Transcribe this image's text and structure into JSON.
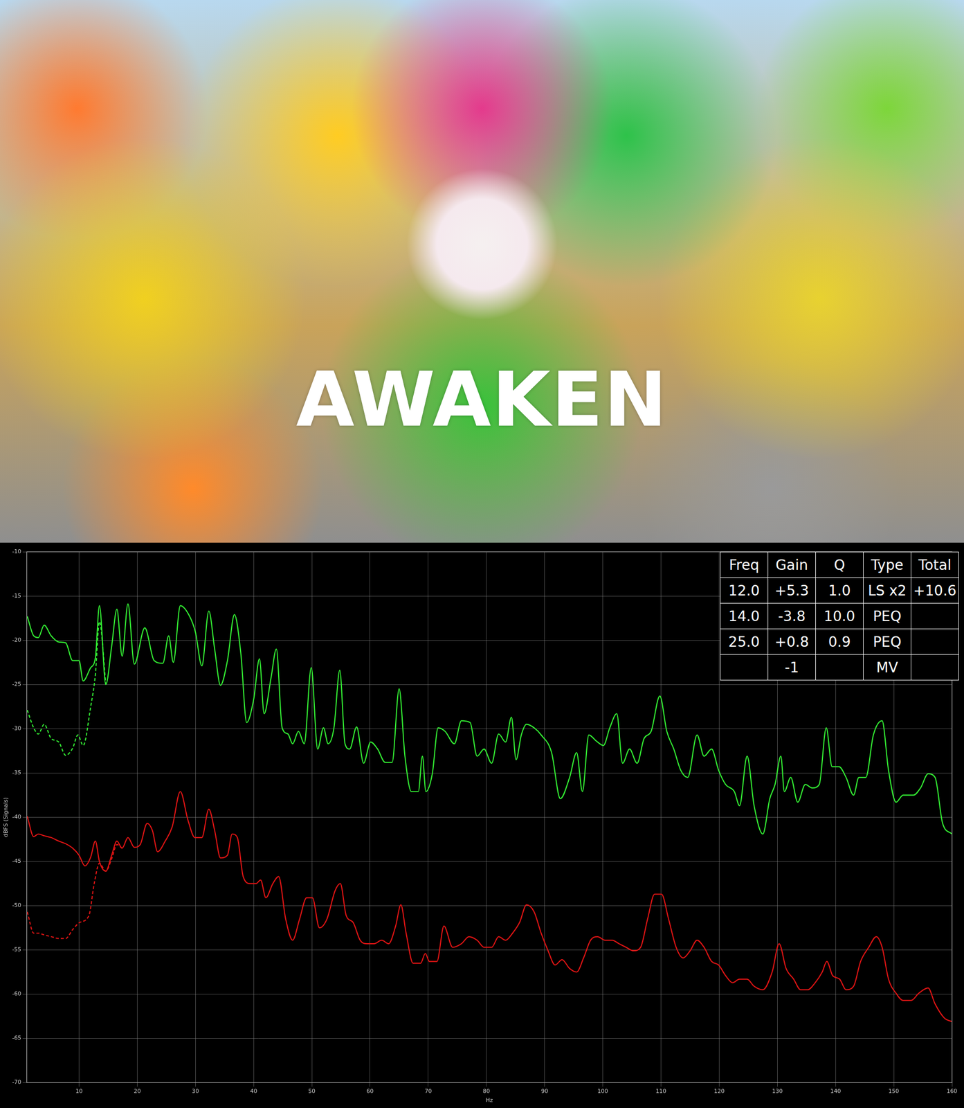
{
  "image_text": "AWAKEN",
  "chart_data": {
    "type": "line",
    "x_label": "Hz",
    "y_label": "dBFS (Signals)",
    "xlim": [
      1,
      160
    ],
    "xticks": [
      10,
      20,
      30,
      40,
      50,
      60,
      70,
      80,
      90,
      100,
      110,
      120,
      130,
      140,
      150,
      160
    ],
    "ylim": [
      -70,
      -10
    ],
    "yticks": [
      -70,
      -65,
      -60,
      -55,
      -50,
      -45,
      -40,
      -35,
      -30,
      -25,
      -20,
      -15,
      -10
    ],
    "grid": true,
    "table": {
      "header": [
        "Freq",
        "Gain",
        "Q",
        "Type",
        "Total"
      ],
      "rows": [
        [
          "12.0",
          "+5.3",
          "1.0",
          "LS x2",
          "+10.6"
        ],
        [
          "14.0",
          "-3.8",
          "10.0",
          "PEQ",
          null
        ],
        [
          "25.0",
          "+0.8",
          "0.9",
          "PEQ",
          null
        ],
        [
          null,
          "-1",
          null,
          "MV",
          null
        ]
      ]
    },
    "series": [
      {
        "color": "#33ee33",
        "line_style": "solid",
        "x": [
          1.1,
          2.2,
          3,
          4,
          5.2,
          6.5,
          7.7,
          8.9,
          10,
          10.7,
          12,
          12.8,
          13.5,
          14.6,
          15.6,
          16.5,
          17.4,
          18.4,
          19.5,
          21.3,
          22.9,
          24.4,
          25.4,
          26.2,
          27.4,
          29,
          30,
          31.1,
          32.3,
          33.3,
          34.3,
          35.5,
          36.7,
          37.8,
          38.8,
          40,
          41,
          41.8,
          43,
          43.9,
          44.9,
          45.9,
          46.7,
          47.7,
          48.7,
          49.9,
          51,
          52,
          52.8,
          53.8,
          54.8,
          55.7,
          56.5,
          57.7,
          58.9,
          60.1,
          61.3,
          62.6,
          63.8,
          65,
          66,
          67.1,
          68.3,
          69,
          69.6,
          70.7,
          71.7,
          72.9,
          74.5,
          75.7,
          77.2,
          78.4,
          79.6,
          80.9,
          82.1,
          83.3,
          84.3,
          85.1,
          86,
          86.9,
          88.2,
          89.4,
          91.2,
          92.7,
          94.3,
          95.5,
          96.5,
          97.6,
          98.9,
          100.1,
          101.2,
          102.4,
          103.4,
          104.6,
          105.9,
          107.1,
          108.3,
          109.8,
          111,
          112.2,
          113.4,
          114.6,
          116.2,
          117.4,
          118.7,
          119.9,
          121.1,
          122.6,
          123.5,
          124.8,
          126,
          127.5,
          128.7,
          129.6,
          130.6,
          131.2,
          132.3,
          133.5,
          134.8,
          136,
          137.2,
          138.4,
          139.4,
          140.6,
          141.8,
          143.1,
          144,
          145.2,
          146.5,
          148,
          149.1,
          150.4,
          151.6,
          153.4,
          154.6,
          155.9,
          157.1,
          158.4,
          160
        ],
        "values": [
          -17.3,
          -19.5,
          -19.7,
          -18.3,
          -19.5,
          -20.2,
          -20.3,
          -22.3,
          -22.3,
          -24.6,
          -23.1,
          -22,
          -16.1,
          -25,
          -20.7,
          -16.5,
          -21.8,
          -15.9,
          -22.7,
          -18.6,
          -22.3,
          -22.6,
          -19.5,
          -22.5,
          -16.1,
          -17.3,
          -19.1,
          -22.9,
          -16.7,
          -21,
          -25.1,
          -22.3,
          -17.1,
          -21.5,
          -29.3,
          -26.7,
          -22.1,
          -28.3,
          -24.2,
          -21,
          -29.9,
          -30.6,
          -31.7,
          -30.3,
          -31.7,
          -23.1,
          -32.3,
          -29.9,
          -31.7,
          -29.9,
          -23.4,
          -31.7,
          -32.3,
          -29.8,
          -33.9,
          -31.5,
          -32.3,
          -33.8,
          -33.8,
          -25.5,
          -33.1,
          -37.1,
          -37.1,
          -33.1,
          -37.1,
          -35.1,
          -29.9,
          -30.3,
          -31.7,
          -29.1,
          -29.3,
          -33.1,
          -32.3,
          -33.9,
          -30.6,
          -31.5,
          -28.7,
          -33.5,
          -30.7,
          -29.5,
          -29.9,
          -30.7,
          -32.7,
          -37.9,
          -35.5,
          -32.7,
          -37.1,
          -30.7,
          -31.4,
          -31.9,
          -29.9,
          -28.3,
          -33.9,
          -32.3,
          -33.9,
          -31.1,
          -30.3,
          -26.3,
          -30.3,
          -32.3,
          -34.7,
          -35.5,
          -30.7,
          -33.1,
          -32.3,
          -34.7,
          -36.3,
          -37.1,
          -38.7,
          -33.1,
          -38.7,
          -41.9,
          -37.9,
          -36.3,
          -33.1,
          -37.1,
          -35.5,
          -38.3,
          -36.3,
          -36.7,
          -36.3,
          -29.9,
          -34.3,
          -34.3,
          -35.5,
          -37.5,
          -35.5,
          -35.5,
          -30.7,
          -29.1,
          -34.7,
          -38.3,
          -37.5,
          -37.5,
          -36.7,
          -35.1,
          -35.5,
          -40.7,
          -41.9
        ]
      },
      {
        "color": "#33ee33",
        "line_style": "dashed",
        "x": [
          1.1,
          2.2,
          3,
          4,
          5.2,
          6.5,
          7.7,
          8.9,
          9.8,
          10.7,
          12,
          12.8,
          13.5,
          14.6
        ],
        "values": [
          -27.9,
          -29.9,
          -30.6,
          -29.5,
          -31.1,
          -31.5,
          -33,
          -32.2,
          -30.7,
          -31.9,
          -27.5,
          -23.9,
          -17.9,
          -25
        ]
      },
      {
        "color": "#e01414",
        "line_style": "solid",
        "x": [
          1.1,
          2.2,
          3,
          4,
          5.2,
          6.5,
          7.7,
          8.9,
          10,
          11,
          12,
          12.8,
          13.5,
          14.6,
          15.6,
          16.5,
          17.4,
          18.4,
          19.5,
          20.5,
          21.7,
          22.6,
          23.5,
          24.8,
          26,
          27.4,
          28.7,
          29.9,
          31.1,
          32.3,
          33.3,
          34.3,
          35.5,
          36.3,
          37.2,
          38.2,
          39.4,
          40.4,
          41.2,
          42.1,
          43.3,
          44.3,
          45.5,
          46.7,
          47.9,
          49.1,
          50.1,
          51.3,
          52.6,
          54,
          54.9,
          55.9,
          57.1,
          58.3,
          59.5,
          60.7,
          62,
          63.2,
          64.4,
          65.3,
          66.2,
          67.4,
          68.7,
          69.5,
          70.2,
          71.5,
          72.7,
          74.2,
          75.7,
          77,
          78.4,
          79.6,
          80.9,
          82.1,
          83.3,
          84.5,
          85.7,
          86.9,
          88.2,
          89.4,
          90.6,
          91.8,
          93,
          94.3,
          95.5,
          96.7,
          97.9,
          99.1,
          100.4,
          101.6,
          102.8,
          104,
          105.3,
          106.5,
          107.7,
          108.9,
          110.1,
          111.3,
          112.6,
          113.8,
          115,
          116.2,
          117.4,
          118.7,
          119.9,
          121.1,
          122.3,
          123.5,
          124.8,
          126,
          127.5,
          129.1,
          130.3,
          131.5,
          132.8,
          134,
          135.2,
          136.5,
          137.7,
          138.5,
          139.5,
          140.7,
          141.8,
          143.1,
          144.3,
          145.7,
          147,
          148,
          149.1,
          150.4,
          151.6,
          153,
          154.3,
          155.9,
          157.1,
          158.7,
          160
        ],
        "values": [
          -39.9,
          -42.2,
          -41.9,
          -42.1,
          -42.3,
          -42.7,
          -43,
          -43.5,
          -44.3,
          -45.5,
          -44.5,
          -42.7,
          -45,
          -46.1,
          -44.3,
          -42.7,
          -43.5,
          -42.3,
          -43.4,
          -43.1,
          -40.7,
          -41.5,
          -43.9,
          -42.7,
          -41.1,
          -37.1,
          -40.3,
          -42.3,
          -42.3,
          -39.1,
          -41.5,
          -44.6,
          -44.3,
          -41.9,
          -42.3,
          -46.7,
          -47.5,
          -47.5,
          -47.1,
          -49.1,
          -47.5,
          -46.7,
          -51.5,
          -53.9,
          -51.5,
          -49.1,
          -49.1,
          -52.5,
          -51.5,
          -48.3,
          -47.5,
          -51.1,
          -51.9,
          -53.9,
          -54.3,
          -54.3,
          -53.9,
          -54.3,
          -52.3,
          -49.9,
          -53.1,
          -56.5,
          -56.5,
          -55.4,
          -56.3,
          -56.3,
          -52.3,
          -54.7,
          -54.3,
          -53.5,
          -53.9,
          -54.7,
          -54.7,
          -53.5,
          -53.9,
          -53.1,
          -51.9,
          -49.9,
          -50.7,
          -53.1,
          -55.1,
          -56.7,
          -56.1,
          -57.1,
          -57.5,
          -55.9,
          -53.9,
          -53.5,
          -53.9,
          -53.9,
          -54.3,
          -54.7,
          -55.1,
          -54.7,
          -51.5,
          -48.7,
          -48.7,
          -51.5,
          -54.7,
          -55.9,
          -55.1,
          -53.9,
          -54.7,
          -56.3,
          -56.7,
          -57.9,
          -58.7,
          -58.3,
          -58.3,
          -59.1,
          -59.5,
          -57.5,
          -54.3,
          -57.1,
          -58.3,
          -59.5,
          -59.5,
          -58.7,
          -57.5,
          -56.3,
          -57.9,
          -58.3,
          -59.5,
          -59.1,
          -56.3,
          -54.7,
          -53.5,
          -54.7,
          -58.3,
          -59.9,
          -60.7,
          -60.7,
          -59.9,
          -59.3,
          -61.1,
          -62.7,
          -63.1
        ]
      },
      {
        "color": "#e01414",
        "line_style": "dashed",
        "x": [
          1.1,
          2.2,
          3,
          4,
          5.2,
          6.5,
          7.7,
          8.9,
          10.1,
          11.7,
          12.6,
          13.5,
          14.6,
          15.6,
          16.5,
          17.4
        ],
        "values": [
          -50.7,
          -53.1,
          -53.1,
          -53.3,
          -53.5,
          -53.7,
          -53.7,
          -52.7,
          -51.9,
          -51.1,
          -47.5,
          -45.2,
          -46.1,
          -44.7,
          -43.1,
          -43.5
        ]
      }
    ]
  }
}
